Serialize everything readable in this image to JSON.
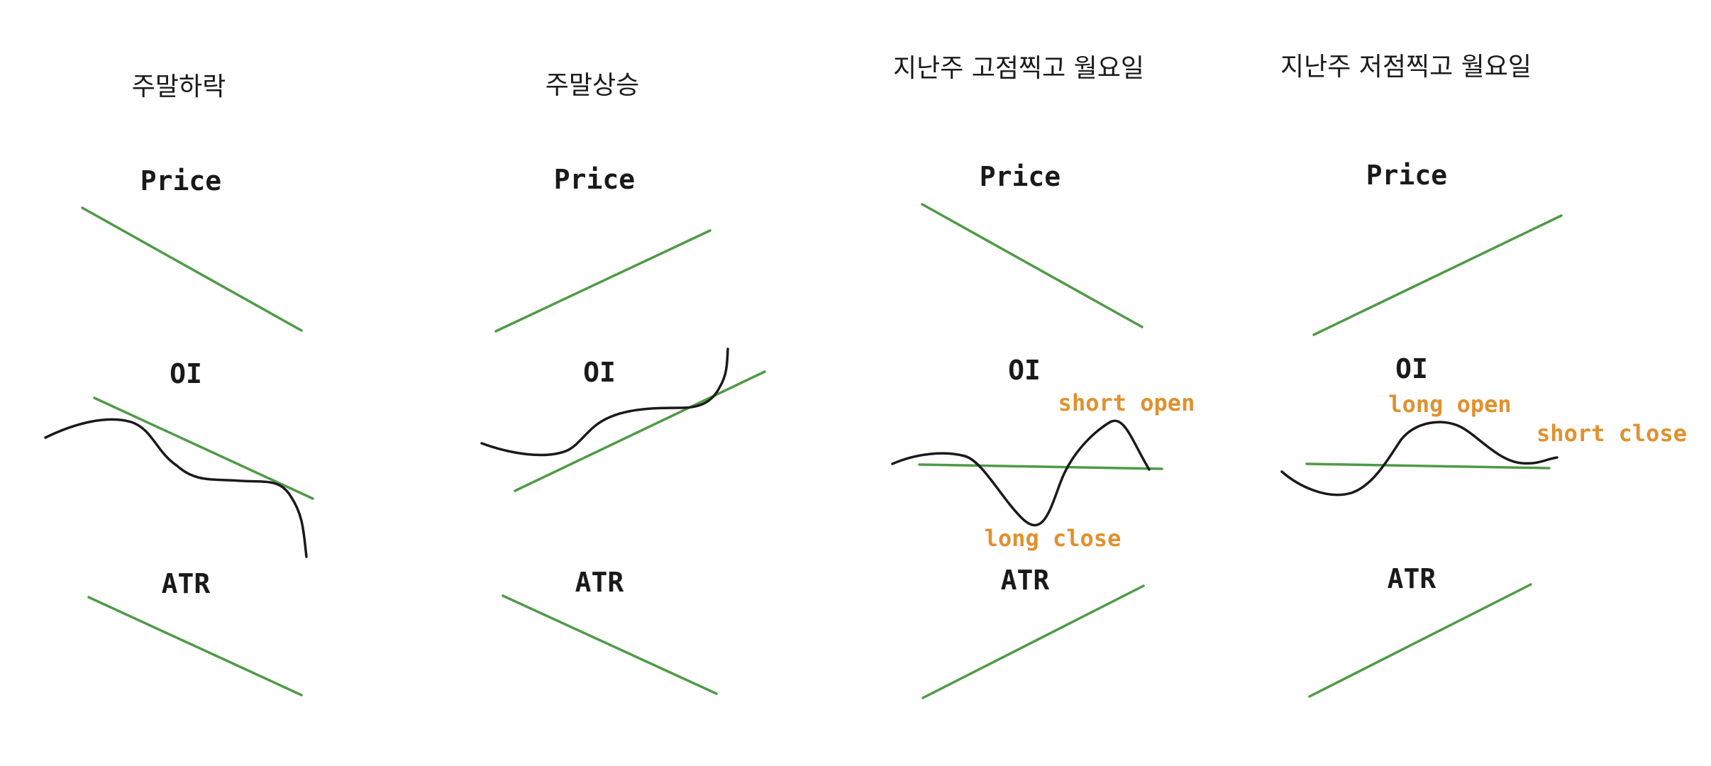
{
  "colors": {
    "trend_line": "#4f9a47",
    "oi_curve": "#1a1a1a",
    "annotation": "#e0912e",
    "text": "#1a1a1a"
  },
  "columns": [
    {
      "title": "주말하락",
      "rows": [
        {
          "label": "Price",
          "trend": "down"
        },
        {
          "label": "OI",
          "trend": "down",
          "curve": "falling"
        },
        {
          "label": "ATR",
          "trend": "down"
        }
      ],
      "annotations": []
    },
    {
      "title": "주말상승",
      "rows": [
        {
          "label": "Price",
          "trend": "up"
        },
        {
          "label": "OI",
          "trend": "up",
          "curve": "rising"
        },
        {
          "label": "ATR",
          "trend": "down"
        }
      ],
      "annotations": []
    },
    {
      "title": "지난주 고점찍고 월요일",
      "rows": [
        {
          "label": "Price",
          "trend": "down"
        },
        {
          "label": "OI",
          "trend": "flat",
          "curve": "dip-then-peak"
        },
        {
          "label": "ATR",
          "trend": "up"
        }
      ],
      "annotations": [
        "short open",
        "long close"
      ]
    },
    {
      "title": "지난주 저점찍고 월요일",
      "rows": [
        {
          "label": "Price",
          "trend": "up"
        },
        {
          "label": "OI",
          "trend": "flat",
          "curve": "dip-then-hump"
        },
        {
          "label": "ATR",
          "trend": "up"
        }
      ],
      "annotations": [
        "long open",
        "short close"
      ]
    }
  ]
}
